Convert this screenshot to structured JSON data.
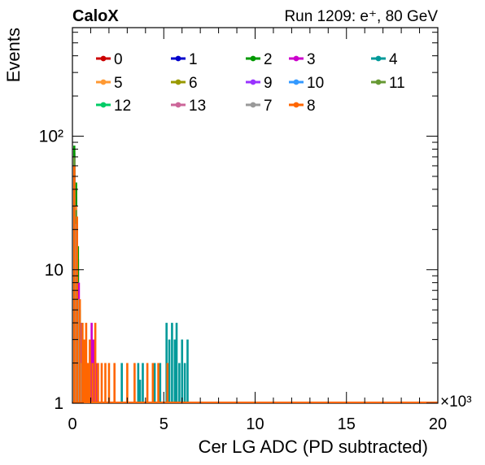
{
  "chart_data": {
    "type": "histogram",
    "title_left": "CaloX",
    "title_right": "Run 1209: e⁺, 80 GeV",
    "xlabel": "Cer LG ADC (PD subtracted)",
    "ylabel": "Events",
    "x_multiplier": "×10³",
    "xlim": [
      0,
      20
    ],
    "x_ticks": [
      0,
      5,
      10,
      15,
      20
    ],
    "x_tick_labels": [
      "0",
      "5",
      "10",
      "15",
      "20"
    ],
    "y_scale": "log",
    "ylim": [
      1,
      650
    ],
    "y_ticks": [
      {
        "value": 1,
        "label": "1"
      },
      {
        "value": 10,
        "label": "10"
      },
      {
        "value": 100,
        "label": "10²"
      }
    ],
    "legend_placement": "top",
    "series": [
      {
        "name": "0",
        "color": "#cc0000",
        "bins": [
          [
            0.0,
            80
          ],
          [
            0.1,
            40
          ],
          [
            0.2,
            12
          ],
          [
            0.35,
            3
          ],
          [
            0.5,
            2
          ]
        ]
      },
      {
        "name": "1",
        "color": "#0000cc",
        "bins": [
          [
            0.0,
            75
          ],
          [
            0.1,
            35
          ],
          [
            0.2,
            10
          ],
          [
            0.3,
            3
          ]
        ]
      },
      {
        "name": "2",
        "color": "#009900",
        "bins": [
          [
            0.0,
            85
          ],
          [
            0.1,
            45
          ],
          [
            0.2,
            15
          ],
          [
            0.3,
            4
          ]
        ]
      },
      {
        "name": "3",
        "color": "#cc00cc",
        "bins": [
          [
            0.0,
            60
          ],
          [
            0.1,
            30
          ],
          [
            0.25,
            8
          ],
          [
            0.45,
            3
          ],
          [
            0.7,
            2
          ],
          [
            0.95,
            4
          ],
          [
            1.05,
            3
          ],
          [
            1.2,
            2
          ]
        ]
      },
      {
        "name": "4",
        "color": "#009999",
        "bins": [
          [
            0.0,
            70
          ],
          [
            0.15,
            20
          ],
          [
            0.4,
            4
          ],
          [
            2.6,
            2
          ],
          [
            3.5,
            2
          ],
          [
            3.6,
            1.5
          ],
          [
            3.75,
            2
          ],
          [
            4.4,
            2
          ],
          [
            4.7,
            2
          ],
          [
            5.05,
            4
          ],
          [
            5.2,
            3
          ],
          [
            5.35,
            4
          ],
          [
            5.5,
            3
          ],
          [
            5.6,
            4
          ],
          [
            5.75,
            2
          ],
          [
            5.9,
            3
          ],
          [
            6.05,
            2
          ],
          [
            6.2,
            3
          ]
        ]
      },
      {
        "name": "5",
        "color": "#ff9933",
        "bins": [
          [
            0.0,
            65
          ],
          [
            0.1,
            30
          ],
          [
            0.3,
            6
          ],
          [
            0.5,
            2
          ]
        ]
      },
      {
        "name": "6",
        "color": "#999900",
        "bins": [
          [
            0.0,
            55
          ],
          [
            0.1,
            25
          ],
          [
            0.3,
            5
          ]
        ]
      },
      {
        "name": "9",
        "color": "#9933ff",
        "bins": [
          [
            0.0,
            50
          ],
          [
            0.15,
            20
          ],
          [
            0.35,
            4
          ]
        ]
      },
      {
        "name": "10",
        "color": "#3399ff",
        "bins": [
          [
            0.0,
            45
          ],
          [
            0.1,
            18
          ],
          [
            0.3,
            3
          ]
        ]
      },
      {
        "name": "11",
        "color": "#669933",
        "bins": [
          [
            0.0,
            70
          ],
          [
            0.1,
            28
          ],
          [
            0.3,
            5
          ]
        ]
      },
      {
        "name": "12",
        "color": "#00cc66",
        "bins": [
          [
            0.0,
            40
          ],
          [
            0.15,
            15
          ],
          [
            0.3,
            3
          ]
        ]
      },
      {
        "name": "13",
        "color": "#cc6699",
        "bins": [
          [
            0.0,
            35
          ],
          [
            0.1,
            12
          ],
          [
            0.3,
            3
          ]
        ]
      },
      {
        "name": "7",
        "color": "#999999",
        "bins": [
          [
            0.0,
            50
          ],
          [
            0.1,
            22
          ],
          [
            0.25,
            6
          ],
          [
            0.4,
            2
          ]
        ]
      },
      {
        "name": "8",
        "color": "#ff6600",
        "bins": [
          [
            0.0,
            60
          ],
          [
            0.15,
            25
          ],
          [
            0.3,
            6
          ],
          [
            0.45,
            4
          ],
          [
            0.55,
            3
          ],
          [
            0.65,
            4
          ],
          [
            0.75,
            2
          ],
          [
            0.85,
            3
          ],
          [
            1.0,
            2
          ],
          [
            1.15,
            4
          ],
          [
            1.3,
            2
          ],
          [
            1.5,
            2
          ],
          [
            1.7,
            2
          ],
          [
            1.9,
            2
          ],
          [
            2.2,
            2
          ],
          [
            2.9,
            2
          ],
          [
            3.3,
            2
          ],
          [
            4.0,
            2
          ],
          [
            4.3,
            2
          ],
          [
            4.6,
            2
          ],
          [
            5.1,
            2
          ]
        ]
      }
    ]
  }
}
